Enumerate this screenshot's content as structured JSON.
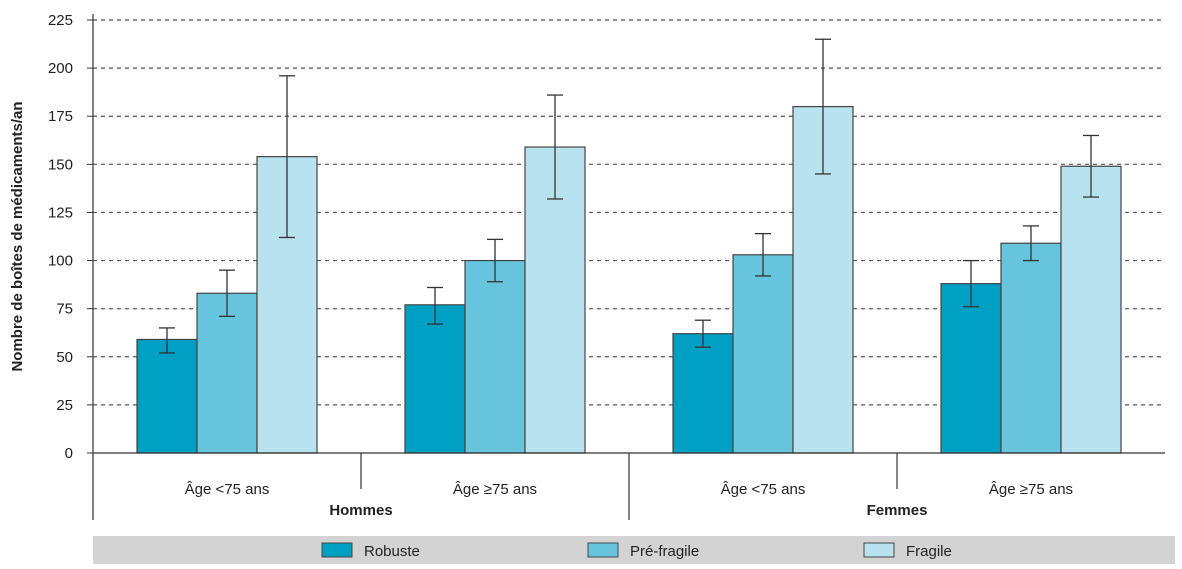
{
  "chart_data": {
    "type": "bar",
    "title": "",
    "ylabel": "Nombre de boîtes de médicaments/an",
    "ylim": [
      0,
      225
    ],
    "yticks": [
      0,
      25,
      50,
      75,
      100,
      125,
      150,
      175,
      200,
      225
    ],
    "grid": "horizontal-dashed",
    "legend_position": "bottom",
    "groups": [
      {
        "label": "Hommes",
        "categories": [
          {
            "label": "Âge <75 ans",
            "values": [
              59,
              83,
              154
            ],
            "err_low": [
              52,
              71,
              112
            ],
            "err_high": [
              65,
              95,
              196
            ]
          },
          {
            "label": "Âge ≥75 ans",
            "values": [
              77,
              100,
              159
            ],
            "err_low": [
              67,
              89,
              132
            ],
            "err_high": [
              86,
              111,
              186
            ]
          }
        ]
      },
      {
        "label": "Femmes",
        "categories": [
          {
            "label": "Âge <75 ans",
            "values": [
              62,
              103,
              180
            ],
            "err_low": [
              55,
              92,
              145
            ],
            "err_high": [
              69,
              114,
              215
            ]
          },
          {
            "label": "Âge ≥75 ans",
            "values": [
              88,
              109,
              149
            ],
            "err_low": [
              76,
              100,
              133
            ],
            "err_high": [
              100,
              118,
              165
            ]
          }
        ]
      }
    ],
    "series": [
      {
        "name": "Robuste",
        "color": "#00a0c4"
      },
      {
        "name": "Pré-fragile",
        "color": "#67c4dd"
      },
      {
        "name": "Fragile",
        "color": "#b8e2ee"
      }
    ]
  }
}
